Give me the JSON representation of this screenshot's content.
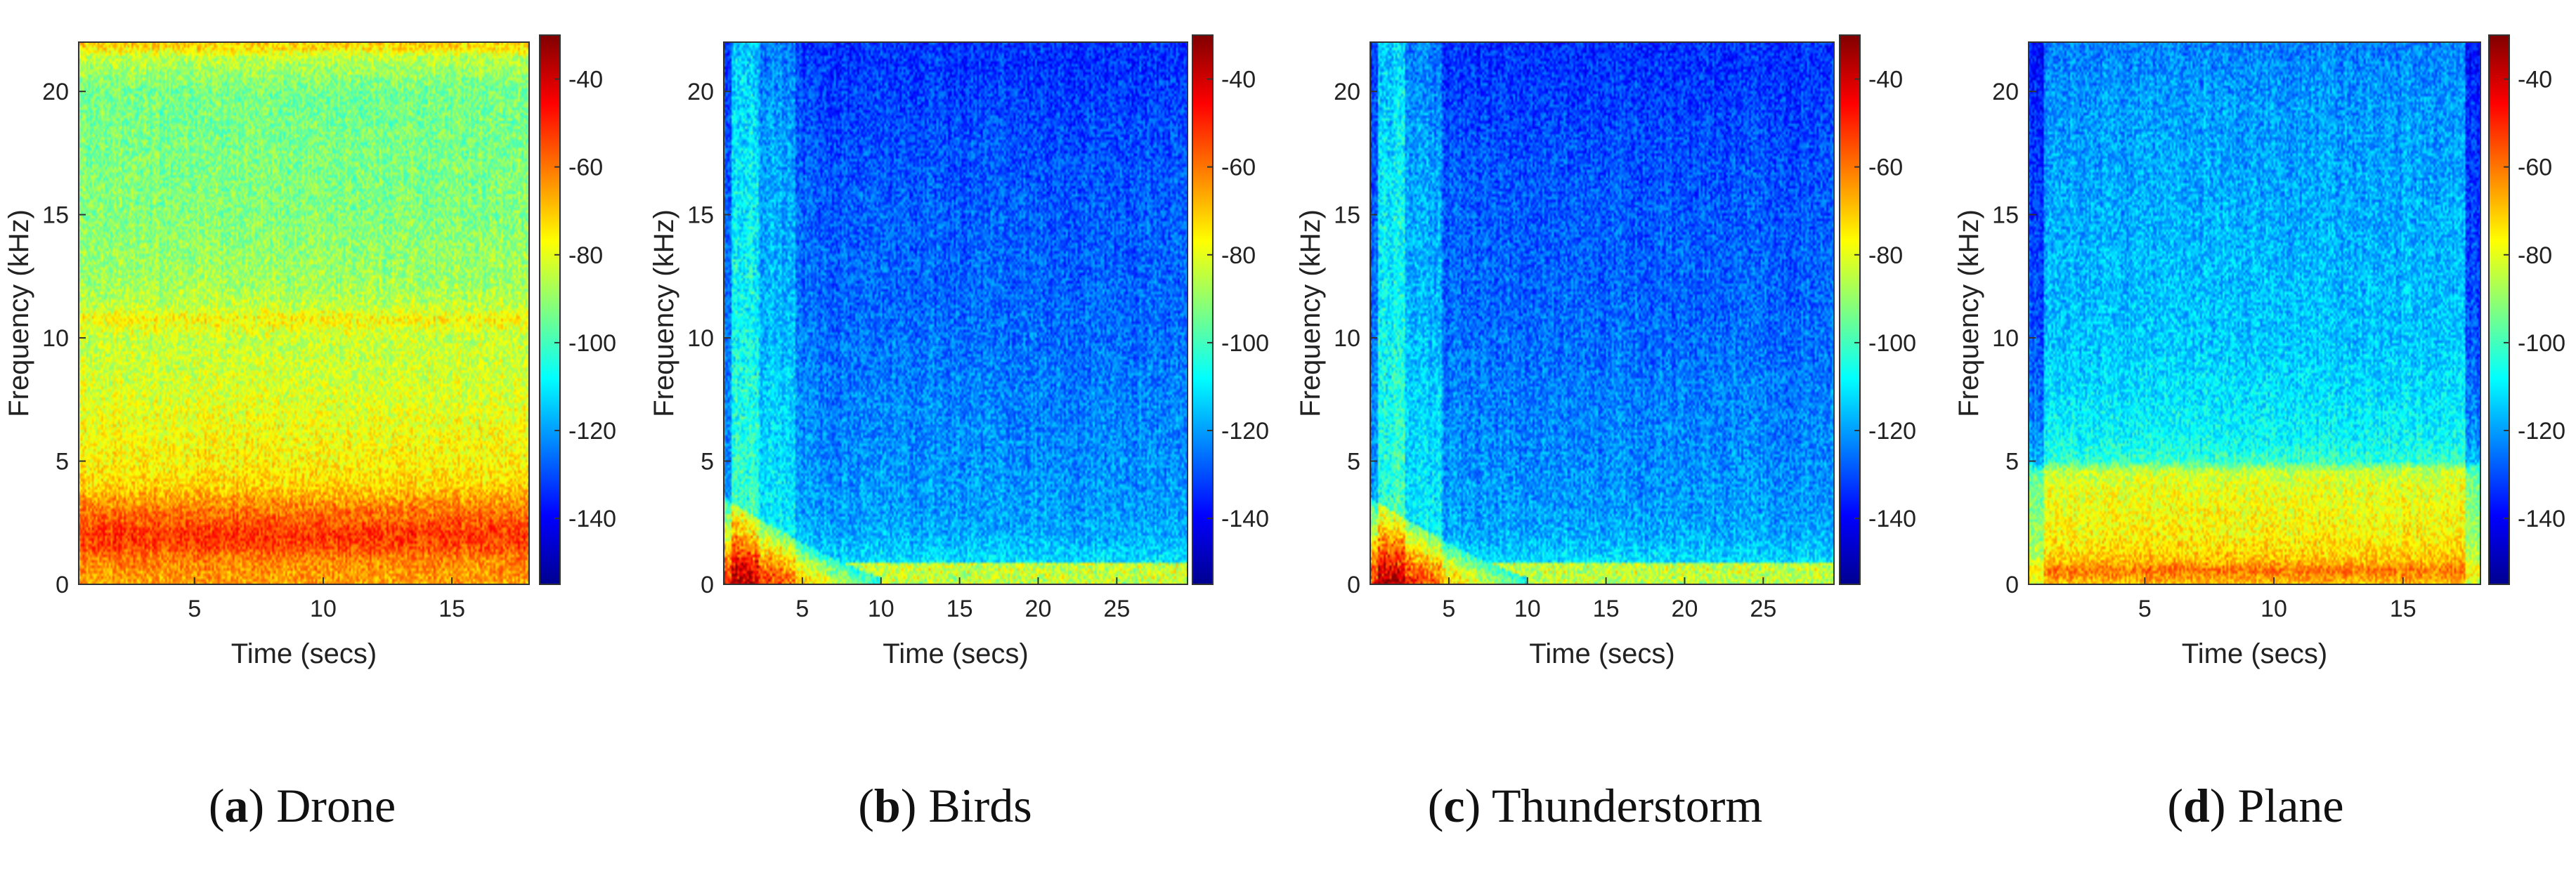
{
  "chart_data": [
    {
      "type": "heatmap",
      "caption_letter": "a",
      "caption_text": "Drone",
      "xlabel": "Time (secs)",
      "ylabel": "Frequency (kHz)",
      "xlim": [
        0.5,
        18
      ],
      "ylim": [
        0,
        22
      ],
      "xticks": [
        5,
        10,
        15
      ],
      "yticks": [
        0,
        5,
        10,
        15,
        20
      ],
      "colorbar": {
        "range": [
          -155,
          -30
        ],
        "ticks": [
          -40,
          -60,
          -80,
          -100,
          -120,
          -140
        ],
        "colormap": "jet"
      },
      "profile": {
        "freq_khz": [
          0,
          0.5,
          1.0,
          1.5,
          2.0,
          2.5,
          3.0,
          3.5,
          4.0,
          5.0,
          6.0,
          8.0,
          10.0,
          10.8,
          11.2,
          12.0,
          15.0,
          20.0,
          21.4,
          21.8,
          22.0
        ],
        "power_db": [
          -66,
          -64,
          -62,
          -55,
          -52,
          -56,
          -60,
          -66,
          -72,
          -76,
          -78,
          -82,
          -84,
          -76,
          -84,
          -88,
          -92,
          -94,
          -85,
          -72,
          -72
        ]
      },
      "time_bands": []
    },
    {
      "type": "heatmap",
      "caption_letter": "b",
      "caption_text": "Birds",
      "xlabel": "Time (secs)",
      "ylabel": "Frequency (kHz)",
      "xlim": [
        0,
        29.5
      ],
      "ylim": [
        0,
        22
      ],
      "xticks": [
        5,
        10,
        15,
        20,
        25
      ],
      "yticks": [
        0,
        5,
        10,
        15,
        20
      ],
      "colorbar": {
        "range": [
          -155,
          -30
        ],
        "ticks": [
          -40,
          -60,
          -80,
          -100,
          -120,
          -140
        ],
        "colormap": "jet"
      },
      "profile": {
        "freq_khz": [
          0,
          0.5,
          1.0,
          2.0,
          3.0,
          5.0,
          8.0,
          10.0,
          12.0,
          15.0,
          18.0,
          20.0,
          22.0
        ],
        "power_db": [
          -112,
          -110,
          -112,
          -118,
          -120,
          -122,
          -124,
          -126,
          -127,
          -128,
          -130,
          -132,
          -134
        ]
      },
      "time_bands": [
        {
          "t": [
            0.5,
            2.2
          ],
          "boost_db": 20
        },
        {
          "t": [
            2.2,
            4.5
          ],
          "boost_db": 10
        }
      ],
      "onset": {
        "t_end": 10,
        "f_max": 3.2,
        "boost_db": 62
      }
    },
    {
      "type": "heatmap",
      "caption_letter": "c",
      "caption_text": "Thunderstorm",
      "xlabel": "Time (secs)",
      "ylabel": "Frequency (kHz)",
      "xlim": [
        0,
        29.5
      ],
      "ylim": [
        0,
        22
      ],
      "xticks": [
        5,
        10,
        15,
        20,
        25
      ],
      "yticks": [
        0,
        5,
        10,
        15,
        20
      ],
      "colorbar": {
        "range": [
          -155,
          -30
        ],
        "ticks": [
          -40,
          -60,
          -80,
          -100,
          -120,
          -140
        ],
        "colormap": "jet"
      },
      "profile": {
        "freq_khz": [
          0,
          0.5,
          1.0,
          2.0,
          3.0,
          5.0,
          8.0,
          10.0,
          12.0,
          15.0,
          18.0,
          20.0,
          22.0
        ],
        "power_db": [
          -112,
          -110,
          -112,
          -118,
          -120,
          -122,
          -124,
          -126,
          -127,
          -128,
          -130,
          -132,
          -134
        ]
      },
      "time_bands": [
        {
          "t": [
            0.5,
            2.2
          ],
          "boost_db": 20
        },
        {
          "t": [
            2.2,
            4.5
          ],
          "boost_db": 10
        }
      ],
      "onset": {
        "t_end": 10,
        "f_max": 3.2,
        "boost_db": 62
      }
    },
    {
      "type": "heatmap",
      "caption_letter": "d",
      "caption_text": "Plane",
      "xlabel": "Time (secs)",
      "ylabel": "Frequency (kHz)",
      "xlim": [
        0.5,
        18
      ],
      "ylim": [
        0,
        22
      ],
      "xticks": [
        5,
        10,
        15
      ],
      "yticks": [
        0,
        5,
        10,
        15,
        20
      ],
      "colorbar": {
        "range": [
          -155,
          -30
        ],
        "ticks": [
          -40,
          -60,
          -80,
          -100,
          -120,
          -140
        ],
        "colormap": "jet"
      },
      "profile": {
        "freq_khz": [
          0,
          0.3,
          0.6,
          1.0,
          2.0,
          3.0,
          4.0,
          4.6,
          5.0,
          6.0,
          8.0,
          10.0,
          15.0,
          20.0,
          22.0
        ],
        "power_db": [
          -70,
          -64,
          -60,
          -70,
          -76,
          -78,
          -80,
          -84,
          -102,
          -108,
          -112,
          -115,
          -118,
          -121,
          -124
        ]
      },
      "time_bands": [],
      "edge_fade": {
        "t_start": 0.5,
        "t_end": 18,
        "width_s": 0.6,
        "drop_db": 14
      }
    }
  ]
}
